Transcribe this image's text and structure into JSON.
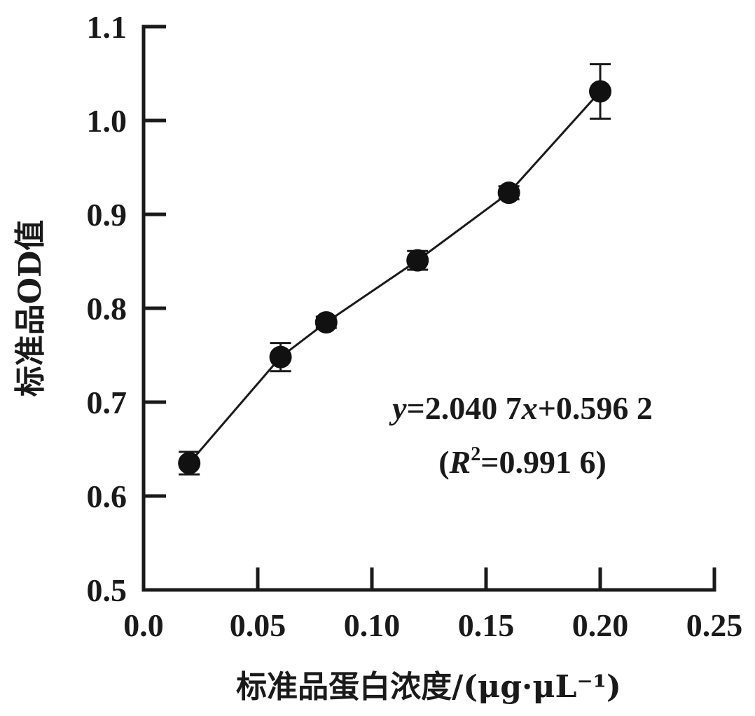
{
  "chart_data": {
    "type": "line",
    "xlabel": "标准品蛋白浓度/(μg·μL⁻¹)",
    "ylabel": "标准品OD值",
    "xlim": [
      0.0,
      0.25
    ],
    "ylim": [
      0.5,
      1.1
    ],
    "x_ticks": [
      "0.0",
      "0.05",
      "0.10",
      "0.15",
      "0.20",
      "0.25"
    ],
    "x_tick_values": [
      0.0,
      0.05,
      0.1,
      0.15,
      0.2,
      0.25
    ],
    "y_ticks": [
      "0.5",
      "0.6",
      "0.7",
      "0.8",
      "0.9",
      "1.0",
      "1.1"
    ],
    "y_tick_values": [
      0.5,
      0.6,
      0.7,
      0.8,
      0.9,
      1.0,
      1.1
    ],
    "grid": false,
    "series": [
      {
        "x": [
          0.02,
          0.06,
          0.08,
          0.12,
          0.16,
          0.2
        ],
        "y": [
          0.635,
          0.748,
          0.785,
          0.851,
          0.923,
          1.031
        ],
        "error": [
          0.012,
          0.015,
          0.006,
          0.01,
          0.007,
          0.029
        ]
      }
    ],
    "annotation": {
      "equation_y": "y",
      "equation_rest": "=2.040 7",
      "equation_x": "x",
      "equation_tail": "+0.596 2",
      "r2_open": "(",
      "r2_symbol": "R",
      "r2_exp": "2",
      "r2_value": "=0.991 6)"
    }
  }
}
